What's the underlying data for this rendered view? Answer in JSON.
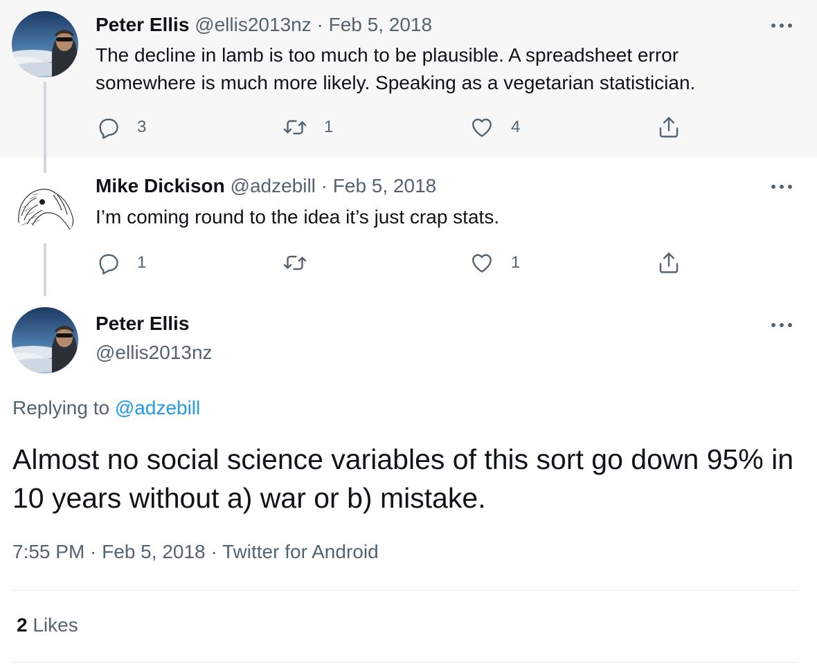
{
  "thread": [
    {
      "author_name": "Peter Ellis",
      "handle": "@ellis2013nz",
      "separator": "·",
      "date": "Feb 5, 2018",
      "text": "The decline in lamb is too much to be plausible. A spreadsheet error somewhere is much more likely. Speaking as a vegetarian statistician.",
      "replies": "3",
      "retweets": "1",
      "likes": "4",
      "avatar": "mountain-photo-avatar"
    },
    {
      "author_name": "Mike Dickison",
      "handle": "@adzebill",
      "separator": "·",
      "date": "Feb 5, 2018",
      "text": "I’m coming round to the idea it’s just crap stats.",
      "replies": "1",
      "retweets": "",
      "likes": "1",
      "avatar": "bird-sketch-avatar"
    }
  ],
  "main_tweet": {
    "author_name": "Peter Ellis",
    "handle": "@ellis2013nz",
    "replying_prefix": "Replying to",
    "replying_to": "@adzebill",
    "text": "Almost no social science variables of this sort go down 95% in 10 years without a) war or b) mistake.",
    "timestamp": "7:55 PM · Feb 5, 2018 · Twitter for Android",
    "likes_count": "2",
    "likes_label": "Likes"
  },
  "colors": {
    "text_primary": "#0f1419",
    "text_secondary": "#536471",
    "link": "#1d9bf0",
    "thread_line": "#cfd9de",
    "highlight_bg": "#f7f7f7"
  }
}
